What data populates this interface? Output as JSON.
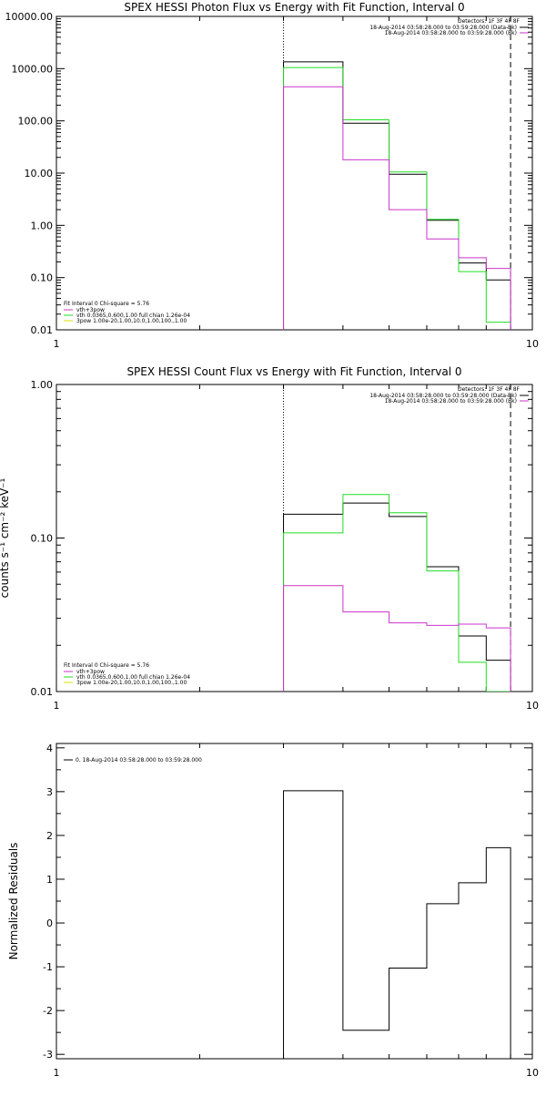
{
  "chart_data": [
    {
      "type": "line",
      "step": true,
      "title": "SPEX HESSI Photon Flux vs Energy with Fit Function, Interval 0",
      "ylabel": "",
      "xlabel": "",
      "xlog": true,
      "ylog": true,
      "xlim": [
        1,
        10
      ],
      "ylim": [
        0.01,
        10000
      ],
      "xticks": [
        {
          "v": 1,
          "label": "1"
        },
        {
          "v": 10,
          "label": "10"
        }
      ],
      "yticks": [
        {
          "v": 0.01,
          "label": "0.01"
        },
        {
          "v": 0.1,
          "label": "0.10"
        },
        {
          "v": 1,
          "label": "1.00"
        },
        {
          "v": 10,
          "label": "10.00"
        },
        {
          "v": 100,
          "label": "100.00"
        },
        {
          "v": 1000,
          "label": "1000.00"
        },
        {
          "v": 10000,
          "label": "10000.00"
        }
      ],
      "bin_edges": [
        3,
        4,
        5,
        6,
        7,
        8,
        9
      ],
      "series": [
        {
          "color": "#000000",
          "values": [
            1350,
            90,
            9.5,
            1.25,
            0.19,
            0.09
          ]
        },
        {
          "color": "#22dd22",
          "values": [
            1050,
            105,
            10.5,
            1.3,
            0.13,
            0.014
          ]
        },
        {
          "color": "#cc33cc",
          "values": [
            450,
            18,
            2.0,
            0.55,
            0.24,
            0.15
          ]
        }
      ],
      "vlines": [
        {
          "x": 3,
          "style": "dotted"
        },
        {
          "x": 9,
          "style": "dashed"
        }
      ],
      "info": {
        "detectors": "Detectors: 1F 3F 4F 8F",
        "lines": [
          {
            "text": "18-Aug-2014 03:58:28.000 to 03:59:28.000 (Data-Bk)",
            "color": "#000000"
          },
          {
            "text": "18-Aug-2014 03:58:28.000 to 03:59:28.000 (Bk)",
            "color": "#cc33cc"
          }
        ]
      },
      "legend": {
        "header": "Fit Interval 0   Chi-square = 5.76",
        "items": [
          {
            "text": "vth+3pow",
            "color": "#cc33cc"
          },
          {
            "text": "vth 0.0365,0.600,1.00  full chian 1.26e-04",
            "color": "#22dd22"
          },
          {
            "text": "3pow 1.00e-20,1.00,10.0,1.00,100.,1.00",
            "color": "#dddd00"
          }
        ]
      }
    },
    {
      "type": "line",
      "step": true,
      "title": "SPEX HESSI Count Flux vs Energy with Fit Function, Interval 0",
      "ylabel": "counts s⁻¹ cm⁻² keV⁻¹",
      "xlabel": "",
      "xlog": true,
      "ylog": true,
      "xlim": [
        1,
        10
      ],
      "ylim": [
        0.01,
        1
      ],
      "xticks": [
        {
          "v": 1,
          "label": "1"
        },
        {
          "v": 10,
          "label": "10"
        }
      ],
      "yticks": [
        {
          "v": 0.01,
          "label": "0.01"
        },
        {
          "v": 0.1,
          "label": "0.10"
        },
        {
          "v": 1,
          "label": "1.00"
        }
      ],
      "bin_edges": [
        3,
        4,
        5,
        6,
        7,
        8,
        9
      ],
      "series": [
        {
          "color": "#000000",
          "values": [
            0.143,
            0.169,
            0.138,
            0.065,
            0.023,
            0.016
          ]
        },
        {
          "color": "#22dd22",
          "values": [
            0.108,
            0.192,
            0.146,
            0.061,
            0.0155,
            0.006
          ]
        },
        {
          "color": "#cc33cc",
          "values": [
            0.049,
            0.033,
            0.028,
            0.027,
            0.0275,
            0.026
          ]
        }
      ],
      "vlines": [
        {
          "x": 3,
          "style": "dotted"
        },
        {
          "x": 9,
          "style": "dashed"
        }
      ],
      "info": {
        "detectors": "Detectors: 1F 3F 4F 8F",
        "lines": [
          {
            "text": "18-Aug-2014 03:58:28.000 to 03:59:28.000 (Data-Bk)",
            "color": "#000000"
          },
          {
            "text": "18-Aug-2014 03:58:28.000 to 03:59:28.000 (Bk)",
            "color": "#cc33cc"
          }
        ]
      },
      "legend": {
        "header": "Fit Interval 0   Chi-square = 5.76",
        "items": [
          {
            "text": "vth+3pow",
            "color": "#cc33cc"
          },
          {
            "text": "vth 0.0365,0.600,1.00  full chian 1.26e-04",
            "color": "#22dd22"
          },
          {
            "text": "3pow 1.00e-20,1.00,10.0,1.00,100.,1.00",
            "color": "#dddd00"
          }
        ]
      }
    },
    {
      "type": "line",
      "step": true,
      "title": "",
      "ylabel": "Normalized Residuals",
      "xlabel": "",
      "xlog": true,
      "ylog": false,
      "xlim": [
        1,
        10
      ],
      "ylim": [
        -3.1,
        4.1
      ],
      "xticks": [
        {
          "v": 1,
          "label": "1"
        },
        {
          "v": 10,
          "label": "10"
        }
      ],
      "yticks": [
        {
          "v": -3,
          "label": "-3"
        },
        {
          "v": -2,
          "label": "-2"
        },
        {
          "v": -1,
          "label": "-1"
        },
        {
          "v": 0,
          "label": "0"
        },
        {
          "v": 1,
          "label": "1"
        },
        {
          "v": 2,
          "label": "2"
        },
        {
          "v": 3,
          "label": "3"
        },
        {
          "v": 4,
          "label": "4"
        }
      ],
      "bin_edges": [
        3,
        4,
        5,
        6,
        7,
        8,
        9
      ],
      "series": [
        {
          "color": "#000000",
          "values": [
            3.02,
            -2.45,
            -1.03,
            0.44,
            0.92,
            1.72
          ]
        }
      ],
      "vlines": [],
      "legend": {
        "header": "",
        "items": [
          {
            "text": "0. 18-Aug-2014 03:58:28.000 to 03:59:28.000",
            "color": "#000000"
          }
        ]
      }
    }
  ]
}
